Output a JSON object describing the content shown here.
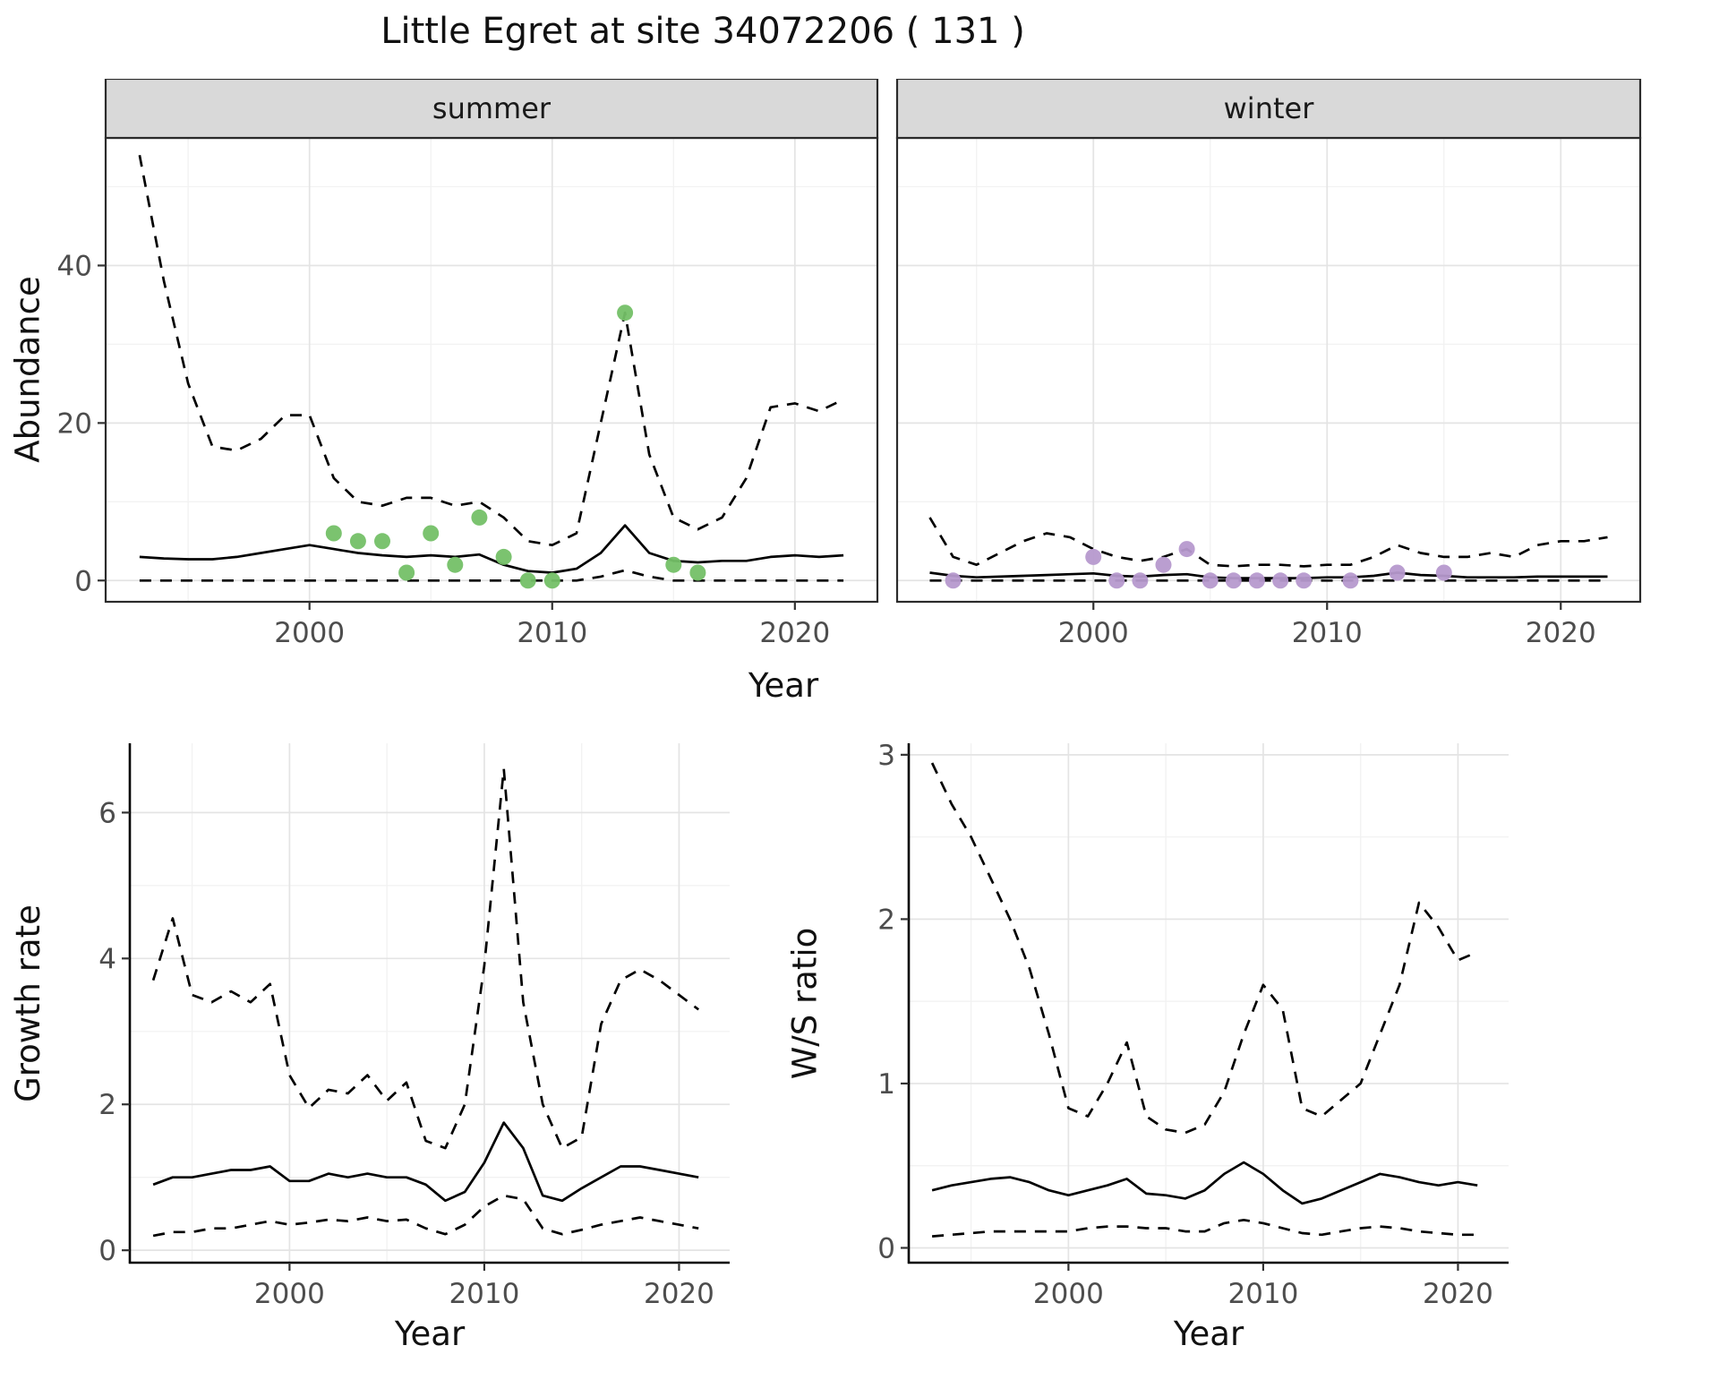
{
  "title": "Little Egret at site 34072206 ( 131 )",
  "colors": {
    "line": "#000000",
    "grid_major": "#e4e4e4",
    "grid_minor": "#f2f2f2",
    "strip_bg": "#d9d9d9",
    "border": "#2b2b2b",
    "tick_label": "#4d4d4d",
    "summer_points": "#74c067",
    "winter_points": "#b699ce"
  },
  "chart_data": [
    {
      "id": "abundance-summer",
      "type": "line",
      "strip_label": "summer",
      "xlabel": "Year",
      "ylabel": "Abundance",
      "xlim": [
        1991.6,
        2023.4
      ],
      "ylim": [
        -2.7,
        56.2
      ],
      "xticks": [
        2000,
        2010,
        2020
      ],
      "xticks_minor": [
        1995,
        2005,
        2015
      ],
      "yticks": [
        0,
        20,
        40
      ],
      "yticks_minor": [
        10,
        30,
        50
      ],
      "show_y_tick_labels": true,
      "panel_border": true,
      "grid": true,
      "x": [
        1993,
        1994,
        1995,
        1996,
        1997,
        1998,
        1999,
        2000,
        2001,
        2002,
        2003,
        2004,
        2005,
        2006,
        2007,
        2008,
        2009,
        2010,
        2011,
        2012,
        2013,
        2014,
        2015,
        2016,
        2017,
        2018,
        2019,
        2020,
        2021,
        2022
      ],
      "series": [
        {
          "name": "upper-ci",
          "style": "dashed",
          "values": [
            54,
            38,
            25,
            17,
            16.5,
            18,
            21,
            21,
            13,
            10,
            9.5,
            10.5,
            10.5,
            9.5,
            10,
            8,
            5,
            4.5,
            6,
            20,
            34,
            16,
            8,
            6.5,
            8,
            13,
            22,
            22.5,
            21.5,
            23
          ]
        },
        {
          "name": "mean",
          "style": "solid",
          "values": [
            3,
            2.8,
            2.7,
            2.7,
            3,
            3.5,
            4,
            4.5,
            4,
            3.5,
            3.2,
            3,
            3.2,
            3,
            3.3,
            2,
            1.2,
            1,
            1.5,
            3.5,
            7,
            3.5,
            2.5,
            2.3,
            2.5,
            2.5,
            3,
            3.2,
            3,
            3.2
          ]
        },
        {
          "name": "lower-ci",
          "style": "dashed",
          "values": [
            0,
            0,
            0,
            0,
            0,
            0,
            0,
            0,
            0,
            0,
            0,
            0,
            0,
            0,
            0,
            0,
            0,
            0,
            0,
            0.5,
            1.3,
            0.5,
            0,
            0,
            0,
            0,
            0,
            0,
            0,
            0
          ]
        }
      ],
      "points": {
        "name": "summer-observations",
        "color": "#74c067",
        "x": [
          2001,
          2002,
          2003,
          2004,
          2005,
          2006,
          2007,
          2008,
          2009,
          2010,
          2013,
          2015,
          2016
        ],
        "y": [
          6,
          5,
          5,
          1,
          6,
          2,
          8,
          3,
          0,
          0,
          34,
          2,
          1
        ]
      }
    },
    {
      "id": "abundance-winter",
      "type": "line",
      "strip_label": "winter",
      "xlabel": "Year",
      "ylabel": "",
      "xlim": [
        1991.6,
        2023.4
      ],
      "ylim": [
        -2.7,
        56.2
      ],
      "xticks": [
        2000,
        2010,
        2020
      ],
      "xticks_minor": [
        1995,
        2005,
        2015
      ],
      "yticks": [
        0,
        20,
        40
      ],
      "yticks_minor": [
        10,
        30,
        50
      ],
      "show_y_tick_labels": false,
      "panel_border": true,
      "grid": true,
      "x": [
        1993,
        1994,
        1995,
        1996,
        1997,
        1998,
        1999,
        2000,
        2001,
        2002,
        2003,
        2004,
        2005,
        2006,
        2007,
        2008,
        2009,
        2010,
        2011,
        2012,
        2013,
        2014,
        2015,
        2016,
        2017,
        2018,
        2019,
        2020,
        2021,
        2022
      ],
      "series": [
        {
          "name": "upper-ci",
          "style": "dashed",
          "values": [
            8,
            3,
            2,
            3.5,
            5,
            6,
            5.5,
            4,
            3,
            2.5,
            3,
            4,
            2,
            1.8,
            2,
            2,
            1.8,
            2,
            2,
            3,
            4.5,
            3.5,
            3,
            3,
            3.5,
            3,
            4.5,
            5,
            5,
            5.5
          ]
        },
        {
          "name": "mean",
          "style": "solid",
          "values": [
            1,
            0.6,
            0.4,
            0.5,
            0.6,
            0.7,
            0.8,
            0.9,
            0.6,
            0.5,
            0.7,
            0.8,
            0.4,
            0.3,
            0.3,
            0.3,
            0.3,
            0.4,
            0.4,
            0.6,
            1,
            0.7,
            0.6,
            0.4,
            0.4,
            0.4,
            0.5,
            0.5,
            0.5,
            0.5
          ]
        },
        {
          "name": "lower-ci",
          "style": "dashed",
          "values": [
            0,
            0,
            0,
            0,
            0,
            0,
            0,
            0,
            0,
            0,
            0,
            0,
            0,
            0,
            0,
            0,
            0,
            0,
            0,
            0,
            0,
            0,
            0,
            0,
            0,
            0,
            0,
            0,
            0,
            0
          ]
        }
      ],
      "points": {
        "name": "winter-observations",
        "color": "#b699ce",
        "x": [
          1994,
          2000,
          2001,
          2002,
          2003,
          2004,
          2005,
          2006,
          2007,
          2008,
          2009,
          2011,
          2013,
          2015
        ],
        "y": [
          0,
          3,
          0,
          0,
          2,
          4,
          0,
          0,
          0,
          0,
          0,
          0,
          1,
          1
        ]
      }
    },
    {
      "id": "growth-rate",
      "type": "line",
      "xlabel": "Year",
      "ylabel": "Growth rate",
      "xlim": [
        1991.8,
        2022.6
      ],
      "ylim": [
        -0.17,
        6.95
      ],
      "xticks": [
        2000,
        2010,
        2020
      ],
      "xticks_minor": [
        1995,
        2005,
        2015
      ],
      "yticks": [
        0,
        2,
        4,
        6
      ],
      "yticks_minor": [
        1,
        3,
        5
      ],
      "show_y_tick_labels": true,
      "panel_border": false,
      "grid": true,
      "x": [
        1993,
        1994,
        1995,
        1996,
        1997,
        1998,
        1999,
        2000,
        2001,
        2002,
        2003,
        2004,
        2005,
        2006,
        2007,
        2008,
        2009,
        2010,
        2011,
        2012,
        2013,
        2014,
        2015,
        2016,
        2017,
        2018,
        2019,
        2020,
        2021
      ],
      "series": [
        {
          "name": "upper-ci",
          "style": "dashed",
          "values": [
            3.7,
            4.55,
            3.5,
            3.4,
            3.55,
            3.4,
            3.65,
            2.4,
            1.95,
            2.2,
            2.15,
            2.4,
            2.05,
            2.3,
            1.5,
            1.4,
            2.0,
            3.9,
            6.6,
            3.4,
            2.0,
            1.4,
            1.55,
            3.1,
            3.7,
            3.85,
            3.7,
            3.5,
            3.3
          ]
        },
        {
          "name": "mean",
          "style": "solid",
          "values": [
            0.9,
            1.0,
            1.0,
            1.05,
            1.1,
            1.1,
            1.15,
            0.95,
            0.95,
            1.05,
            1.0,
            1.05,
            1.0,
            1.0,
            0.9,
            0.68,
            0.8,
            1.2,
            1.75,
            1.4,
            0.75,
            0.68,
            0.85,
            1.0,
            1.15,
            1.15,
            1.1,
            1.05,
            1.0
          ]
        },
        {
          "name": "lower-ci",
          "style": "dashed",
          "values": [
            0.2,
            0.25,
            0.25,
            0.3,
            0.3,
            0.35,
            0.4,
            0.35,
            0.38,
            0.42,
            0.4,
            0.45,
            0.4,
            0.42,
            0.3,
            0.22,
            0.35,
            0.6,
            0.75,
            0.7,
            0.3,
            0.22,
            0.28,
            0.35,
            0.4,
            0.45,
            0.4,
            0.35,
            0.3
          ]
        }
      ]
    },
    {
      "id": "ws-ratio",
      "type": "line",
      "xlabel": "Year",
      "ylabel": "W/S ratio",
      "xlim": [
        1991.8,
        2022.6
      ],
      "ylim": [
        -0.09,
        3.07
      ],
      "xticks": [
        2000,
        2010,
        2020
      ],
      "xticks_minor": [
        1995,
        2005,
        2015
      ],
      "yticks": [
        0,
        1,
        2,
        3
      ],
      "yticks_minor": [
        0.5,
        1.5,
        2.5
      ],
      "show_y_tick_labels": true,
      "panel_border": false,
      "grid": true,
      "x": [
        1993,
        1994,
        1995,
        1996,
        1997,
        1998,
        1999,
        2000,
        2001,
        2002,
        2003,
        2004,
        2005,
        2006,
        2007,
        2008,
        2009,
        2010,
        2011,
        2012,
        2013,
        2014,
        2015,
        2016,
        2017,
        2018,
        2019,
        2020,
        2021
      ],
      "series": [
        {
          "name": "upper-ci",
          "style": "dashed",
          "values": [
            2.95,
            2.7,
            2.5,
            2.25,
            2.0,
            1.7,
            1.3,
            0.85,
            0.8,
            1.0,
            1.25,
            0.8,
            0.72,
            0.7,
            0.75,
            0.95,
            1.3,
            1.6,
            1.45,
            0.85,
            0.8,
            0.9,
            1.0,
            1.3,
            1.6,
            2.1,
            1.95,
            1.75,
            1.8
          ]
        },
        {
          "name": "mean",
          "style": "solid",
          "values": [
            0.35,
            0.38,
            0.4,
            0.42,
            0.43,
            0.4,
            0.35,
            0.32,
            0.35,
            0.38,
            0.42,
            0.33,
            0.32,
            0.3,
            0.35,
            0.45,
            0.52,
            0.45,
            0.35,
            0.27,
            0.3,
            0.35,
            0.4,
            0.45,
            0.43,
            0.4,
            0.38,
            0.4,
            0.38
          ]
        },
        {
          "name": "lower-ci",
          "style": "dashed",
          "values": [
            0.07,
            0.08,
            0.09,
            0.1,
            0.1,
            0.1,
            0.1,
            0.1,
            0.12,
            0.13,
            0.13,
            0.12,
            0.12,
            0.1,
            0.1,
            0.15,
            0.17,
            0.15,
            0.12,
            0.09,
            0.08,
            0.1,
            0.12,
            0.13,
            0.12,
            0.1,
            0.09,
            0.08,
            0.08
          ]
        }
      ]
    }
  ]
}
